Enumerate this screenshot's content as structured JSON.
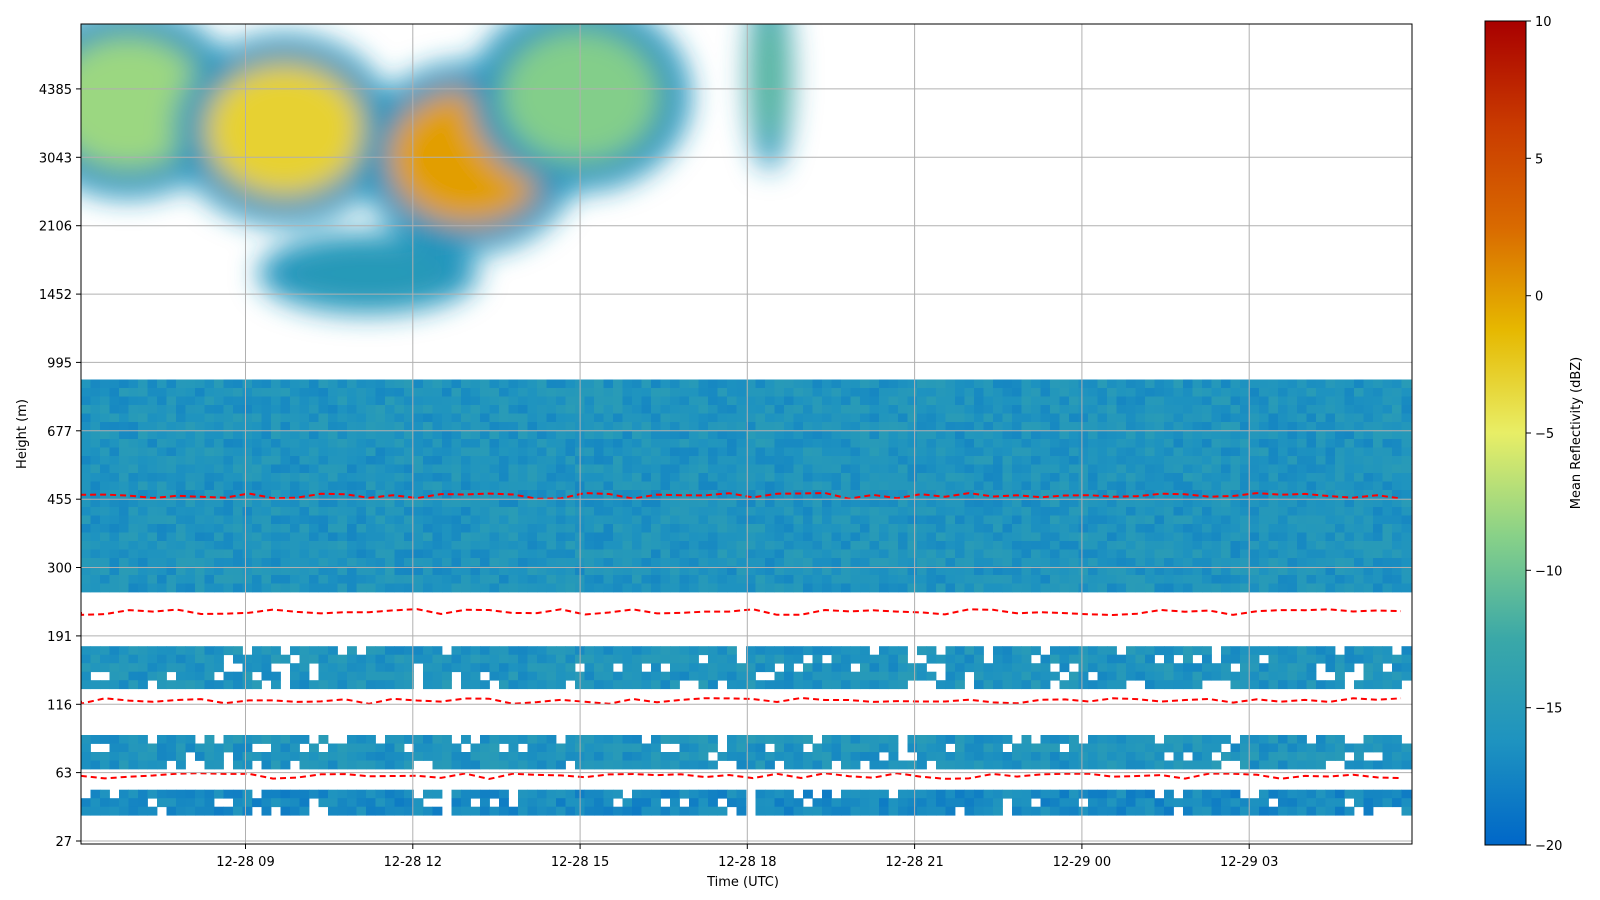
{
  "chart_data": {
    "type": "heatmap",
    "title": "",
    "xlabel": "Time (UTC)",
    "ylabel": "Height (m)",
    "x_ticks": [
      "12-28 09",
      "12-28 12",
      "12-28 15",
      "12-28 18",
      "12-28 21",
      "12-29 00",
      "12-29 03"
    ],
    "y_ticks": [
      "27",
      "63",
      "116",
      "191",
      "300",
      "455",
      "677",
      "995",
      "1452",
      "2106",
      "3043",
      "4385"
    ],
    "xlim": [
      "12-28 06:05",
      "12-29 05:55"
    ],
    "ylim_index": [
      0,
      11.95
    ],
    "grid": true,
    "colorbar": {
      "label": "Mean Reflectivity (dBZ)",
      "min": -20,
      "max": 10,
      "ticks": [
        "10",
        "5",
        "0",
        "−5",
        "−10",
        "−15",
        "−20"
      ],
      "colormap": [
        "#0067c8",
        "#1e93c0",
        "#3aa8a8",
        "#88d188",
        "#e8ee66",
        "#e6b800",
        "#d96a00",
        "#c93a00",
        "#a80000"
      ]
    },
    "contour": {
      "level_dbz": -15,
      "color": "#ff0000",
      "style": "dashed"
    },
    "layers": [
      {
        "name": "low layer A",
        "t": [
          6.05,
          29.9
        ],
        "h_index": [
          0.45,
          0.75
        ],
        "dbz": -17
      },
      {
        "name": "low layer B",
        "t": [
          6.05,
          29.9
        ],
        "h_index": [
          1.15,
          1.55
        ],
        "dbz": -16
      },
      {
        "name": "mid layer",
        "t": [
          6.05,
          29.9
        ],
        "h_index": [
          2.25,
          2.85
        ],
        "dbz": -16
      },
      {
        "name": "boundary layer",
        "t": [
          6.05,
          29.9
        ],
        "h_index": [
          3.75,
          6.75
        ],
        "dbz": -16
      }
    ],
    "cloud_patches": [
      {
        "t_center": 6.9,
        "h_center": 10.8,
        "dbz": -8
      },
      {
        "t_center": 9.7,
        "h_center": 10.4,
        "dbz": -3
      },
      {
        "t_center": 13.0,
        "h_center": 10.0,
        "dbz": 0
      },
      {
        "t_center": 15.0,
        "h_center": 10.9,
        "dbz": -9
      },
      {
        "t_center": 18.4,
        "h_center": 11.2,
        "dbz": -11
      },
      {
        "t_center": 11.2,
        "h_center": 8.3,
        "dbz": -15
      }
    ]
  }
}
